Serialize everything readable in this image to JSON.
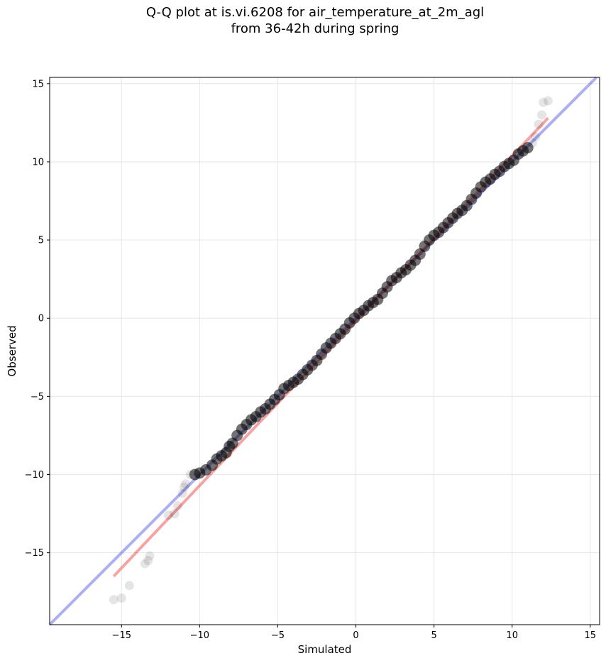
{
  "title_line1": "Q-Q plot at is.vi.6208 for air_temperature_at_2m_agl",
  "title_line2": "from 36-42h during spring",
  "chart_data": {
    "type": "scatter",
    "title": "Q-Q plot at is.vi.6208 for air_temperature_at_2m_agl\nfrom 36-42h during spring",
    "xlabel": "Simulated",
    "ylabel": "Observed",
    "xlim": [
      -19.6,
      15.6
    ],
    "ylim": [
      -19.6,
      15.4
    ],
    "xticks": [
      -15,
      -10,
      -5,
      0,
      5,
      10,
      15
    ],
    "yticks": [
      -15,
      -10,
      -5,
      0,
      5,
      10,
      15
    ],
    "tick_labels": [
      "−15",
      "−10",
      "−5",
      "0",
      "5",
      "10",
      "15"
    ],
    "grid": true,
    "points": [
      [
        -15.5,
        -18.0
      ],
      [
        -15.0,
        -17.9
      ],
      [
        -14.5,
        -17.1
      ],
      [
        -13.5,
        -15.7
      ],
      [
        -13.2,
        -15.2
      ],
      [
        -13.3,
        -15.5
      ],
      [
        -12.0,
        -12.6
      ],
      [
        -11.6,
        -12.5
      ],
      [
        -11.4,
        -12.0
      ],
      [
        -11.1,
        -11.2
      ],
      [
        -11.0,
        -10.8
      ],
      [
        -10.9,
        -10.6
      ],
      [
        -10.6,
        -10.0
      ],
      [
        -10.3,
        -10.0
      ],
      [
        -10.0,
        -9.9
      ],
      [
        -9.6,
        -9.7
      ],
      [
        -9.2,
        -9.4
      ],
      [
        -8.9,
        -9.0
      ],
      [
        -8.6,
        -8.8
      ],
      [
        -8.3,
        -8.6
      ],
      [
        -8.1,
        -8.2
      ],
      [
        -7.9,
        -8.0
      ],
      [
        -7.6,
        -7.5
      ],
      [
        -7.3,
        -7.1
      ],
      [
        -7.0,
        -6.8
      ],
      [
        -6.7,
        -6.5
      ],
      [
        -6.4,
        -6.3
      ],
      [
        -6.1,
        -6.0
      ],
      [
        -5.8,
        -5.8
      ],
      [
        -5.5,
        -5.5
      ],
      [
        -5.2,
        -5.2
      ],
      [
        -4.9,
        -4.9
      ],
      [
        -4.6,
        -4.5
      ],
      [
        -4.3,
        -4.3
      ],
      [
        -4.0,
        -4.1
      ],
      [
        -3.7,
        -3.9
      ],
      [
        -3.4,
        -3.6
      ],
      [
        -3.1,
        -3.3
      ],
      [
        -2.8,
        -3.0
      ],
      [
        -2.5,
        -2.7
      ],
      [
        -2.2,
        -2.3
      ],
      [
        -1.9,
        -1.9
      ],
      [
        -1.6,
        -1.6
      ],
      [
        -1.3,
        -1.3
      ],
      [
        -1.0,
        -1.0
      ],
      [
        -0.7,
        -0.7
      ],
      [
        -0.4,
        -0.3
      ],
      [
        -0.1,
        0.0
      ],
      [
        0.2,
        0.3
      ],
      [
        0.5,
        0.5
      ],
      [
        0.8,
        0.8
      ],
      [
        1.1,
        1.0
      ],
      [
        1.4,
        1.2
      ],
      [
        1.7,
        1.6
      ],
      [
        2.0,
        2.0
      ],
      [
        2.3,
        2.4
      ],
      [
        2.6,
        2.6
      ],
      [
        2.9,
        2.9
      ],
      [
        3.2,
        3.1
      ],
      [
        3.5,
        3.4
      ],
      [
        3.8,
        3.7
      ],
      [
        4.1,
        4.1
      ],
      [
        4.4,
        4.6
      ],
      [
        4.7,
        5.0
      ],
      [
        5.0,
        5.3
      ],
      [
        5.3,
        5.5
      ],
      [
        5.6,
        5.8
      ],
      [
        5.9,
        6.1
      ],
      [
        6.2,
        6.4
      ],
      [
        6.5,
        6.7
      ],
      [
        6.8,
        6.9
      ],
      [
        7.1,
        7.2
      ],
      [
        7.4,
        7.6
      ],
      [
        7.7,
        8.0
      ],
      [
        8.0,
        8.4
      ],
      [
        8.3,
        8.7
      ],
      [
        8.6,
        8.9
      ],
      [
        8.9,
        9.2
      ],
      [
        9.2,
        9.4
      ],
      [
        9.5,
        9.7
      ],
      [
        9.8,
        9.9
      ],
      [
        10.1,
        10.1
      ],
      [
        10.4,
        10.5
      ],
      [
        10.7,
        10.7
      ],
      [
        11.0,
        10.9
      ],
      [
        11.3,
        11.2
      ],
      [
        11.5,
        11.6
      ],
      [
        11.7,
        12.4
      ],
      [
        11.9,
        13.0
      ],
      [
        12.0,
        13.8
      ],
      [
        12.3,
        13.9
      ]
    ],
    "reference_line": {
      "slope": 1,
      "intercept": 0,
      "color": "#3333ee"
    },
    "fit_line": {
      "x": [
        -15.5,
        12.3
      ],
      "y": [
        -16.5,
        12.8
      ],
      "color": "#ee3333"
    },
    "point_color": "#000000"
  }
}
